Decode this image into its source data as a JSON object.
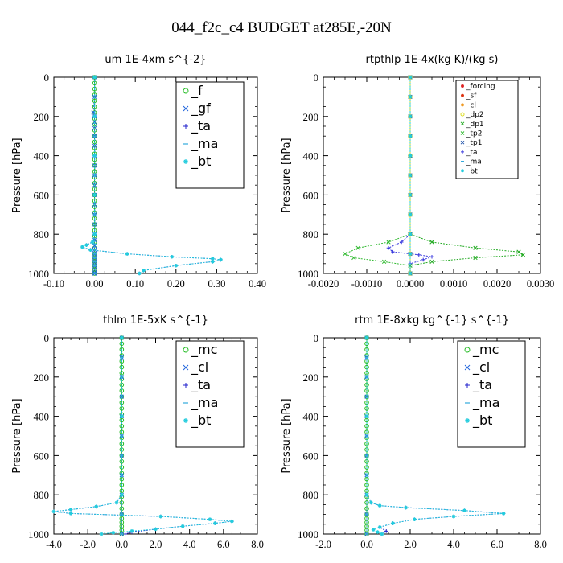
{
  "title": "044_f2c_c4  BUDGET at285E,-20N",
  "chart_data": [
    {
      "type": "line",
      "title": "um   1E-4xm s^{-2}",
      "ylabel": "Pressure [hPa]",
      "ylim": [
        1000,
        0
      ],
      "xlim": [
        -0.1,
        0.4
      ],
      "xticks": [
        "-0.10",
        "0.00",
        "0.10",
        "0.20",
        "0.30",
        "0.40"
      ],
      "yticks": [
        "0",
        "200",
        "400",
        "600",
        "800",
        "1000"
      ],
      "legend": "top-right",
      "series": [
        {
          "name": "_f",
          "color": "#22bb22",
          "marker": "o",
          "x": [
            0,
            0,
            0,
            0,
            0,
            0,
            0,
            0,
            0,
            0,
            0,
            0,
            0,
            0,
            0,
            0,
            0,
            0,
            0,
            0,
            0,
            0,
            0,
            0,
            0,
            0,
            0,
            0,
            0,
            0,
            0,
            0,
            0,
            0,
            0,
            0
          ],
          "y": [
            0,
            30,
            60,
            90,
            120,
            150,
            180,
            210,
            240,
            270,
            300,
            330,
            360,
            390,
            420,
            450,
            480,
            510,
            540,
            570,
            600,
            630,
            660,
            690,
            720,
            750,
            780,
            810,
            840,
            870,
            900,
            920,
            940,
            960,
            980,
            1000
          ]
        },
        {
          "name": "_gf",
          "color": "#2266dd",
          "marker": "x",
          "x": [
            0,
            0,
            -0.003,
            0,
            0,
            0,
            0,
            0,
            0,
            0,
            0,
            0,
            0,
            0,
            0,
            0,
            0,
            0,
            0,
            0,
            0,
            0,
            0,
            0,
            0,
            0,
            0,
            0,
            0,
            0,
            0,
            0,
            0
          ],
          "y": [
            0,
            100,
            180,
            200,
            230,
            260,
            300,
            350,
            400,
            450,
            500,
            550,
            600,
            650,
            700,
            750,
            800,
            830,
            860,
            880,
            900,
            920,
            940,
            960,
            980,
            1000,
            1000,
            1000,
            1000,
            1000,
            1000,
            1000,
            1000
          ]
        },
        {
          "name": "_ta",
          "color": "#2222cc",
          "marker": "+",
          "x": [
            0,
            0,
            0,
            0,
            -0.005,
            -0.02,
            -0.03,
            -0.01,
            0.08,
            0.19,
            0.29,
            0.31,
            0.29,
            0.2,
            0.12,
            0.11
          ],
          "y": [
            0,
            200,
            400,
            800,
            840,
            855,
            865,
            880,
            900,
            915,
            925,
            930,
            940,
            960,
            985,
            1000
          ]
        },
        {
          "name": "_ma",
          "color": "#33aadd",
          "marker": "-",
          "x": [
            0,
            0,
            0,
            0,
            0,
            0,
            0,
            0,
            0,
            0,
            0,
            0,
            0,
            0,
            0,
            0
          ],
          "y": [
            0,
            100,
            200,
            300,
            400,
            500,
            600,
            700,
            800,
            850,
            880,
            900,
            920,
            940,
            960,
            1000
          ]
        },
        {
          "name": "_bt",
          "color": "#22ccdd",
          "marker": "*",
          "x": [
            0,
            0,
            0,
            0,
            0,
            -0.005,
            -0.02,
            -0.03,
            -0.01,
            0.08,
            0.19,
            0.29,
            0.31,
            0.29,
            0.2,
            0.12,
            0.11
          ],
          "y": [
            0,
            200,
            400,
            600,
            800,
            840,
            855,
            865,
            880,
            900,
            915,
            925,
            930,
            940,
            960,
            985,
            1000
          ]
        }
      ]
    },
    {
      "type": "line",
      "title": "rtpthlp   1E-4x(kg K)/(kg s)",
      "ylabel": "Pressure [hPa]",
      "ylim": [
        1000,
        0
      ],
      "xlim": [
        -0.002,
        0.003
      ],
      "xticks": [
        "-0.0020",
        "-0.0010",
        "0.0000",
        "0.0010",
        "0.0020",
        "0.0030"
      ],
      "yticks": [
        "0",
        "200",
        "400",
        "600",
        "800",
        "1000"
      ],
      "legend": "top-right",
      "series": [
        {
          "name": "_forcing",
          "color": "#dd2222",
          "marker": "*",
          "x": [
            0,
            0,
            0,
            0,
            0,
            0,
            0,
            0,
            0,
            0,
            0
          ],
          "y": [
            0,
            100,
            200,
            300,
            400,
            500,
            600,
            700,
            800,
            900,
            1000
          ]
        },
        {
          "name": "_sf",
          "color": "#dd3311",
          "marker": "*",
          "x": [
            0,
            0,
            0,
            0,
            0,
            0,
            0,
            0,
            0,
            0,
            0
          ],
          "y": [
            0,
            100,
            200,
            300,
            400,
            500,
            600,
            700,
            800,
            900,
            1000
          ]
        },
        {
          "name": "_cl",
          "color": "#ee9922",
          "marker": "*",
          "x": [
            0,
            0,
            0,
            0,
            0,
            0,
            0,
            0,
            0,
            0,
            0
          ],
          "y": [
            0,
            100,
            200,
            300,
            400,
            500,
            600,
            700,
            800,
            900,
            1000
          ]
        },
        {
          "name": "_dp2",
          "color": "#dddd22",
          "marker": "o",
          "x": [
            0,
            0,
            0,
            0,
            0,
            0,
            0,
            0,
            0,
            0,
            0
          ],
          "y": [
            0,
            100,
            200,
            300,
            400,
            500,
            600,
            700,
            800,
            900,
            1000
          ]
        },
        {
          "name": "_dp1",
          "color": "#22aa22",
          "marker": "x",
          "x": [
            0,
            0,
            0,
            0.0005,
            0.0015,
            0.0025,
            0.0026,
            0.0015,
            0.0005,
            0,
            0
          ],
          "y": [
            0,
            400,
            800,
            840,
            870,
            890,
            905,
            920,
            940,
            960,
            1000
          ]
        },
        {
          "name": "_tp2",
          "color": "#33bb33",
          "marker": "x",
          "x": [
            0,
            0,
            0,
            -0.0005,
            -0.0012,
            -0.0015,
            -0.0013,
            -0.0006,
            0,
            0
          ],
          "y": [
            0,
            400,
            800,
            840,
            870,
            900,
            920,
            940,
            960,
            1000
          ]
        },
        {
          "name": "_tp1",
          "color": "#2255aa",
          "marker": "x",
          "x": [
            0,
            0,
            0,
            0,
            0,
            0,
            0,
            0,
            0,
            0,
            0
          ],
          "y": [
            0,
            100,
            200,
            300,
            400,
            500,
            600,
            700,
            800,
            900,
            1000
          ]
        },
        {
          "name": "_ta",
          "color": "#3333dd",
          "marker": "+",
          "x": [
            0,
            0,
            0,
            -0.0002,
            -0.0005,
            -0.0004,
            0.0002,
            0.0005,
            0.0003,
            0,
            0
          ],
          "y": [
            0,
            400,
            800,
            840,
            870,
            890,
            905,
            915,
            930,
            950,
            1000
          ]
        },
        {
          "name": "_ma",
          "color": "#33aadd",
          "marker": "-",
          "x": [
            0,
            0,
            0,
            0,
            0,
            0,
            0,
            0,
            0,
            0,
            0
          ],
          "y": [
            0,
            100,
            200,
            300,
            400,
            500,
            600,
            700,
            800,
            900,
            1000
          ]
        },
        {
          "name": "_bt",
          "color": "#22ccdd",
          "marker": "*",
          "x": [
            0,
            0,
            0,
            0,
            0,
            0,
            0,
            0,
            0,
            0,
            0
          ],
          "y": [
            0,
            100,
            200,
            300,
            400,
            500,
            600,
            700,
            800,
            900,
            1000
          ]
        }
      ]
    },
    {
      "type": "line",
      "title": "thlm   1E-5xK s^{-1}",
      "ylabel": "Pressure [hPa]",
      "ylim": [
        1000,
        0
      ],
      "xlim": [
        -4.0,
        8.0
      ],
      "xticks": [
        "-4.0",
        "-2.0",
        "0.0",
        "2.0",
        "4.0",
        "6.0",
        "8.0"
      ],
      "yticks": [
        "0",
        "200",
        "400",
        "600",
        "800",
        "1000"
      ],
      "legend": "top-right",
      "series": [
        {
          "name": "_mc",
          "color": "#22bb22",
          "marker": "o",
          "x": [
            0,
            0,
            0,
            0,
            0,
            0,
            0,
            0,
            0,
            0,
            0,
            0,
            0,
            0,
            0,
            0,
            0,
            0,
            0,
            0,
            0,
            0,
            0,
            0,
            0,
            0,
            0,
            0,
            0,
            0,
            0,
            0,
            0,
            0,
            0,
            0
          ],
          "y": [
            0,
            30,
            60,
            90,
            120,
            150,
            180,
            210,
            240,
            270,
            300,
            330,
            360,
            390,
            420,
            450,
            480,
            510,
            540,
            570,
            600,
            630,
            660,
            690,
            720,
            750,
            780,
            810,
            840,
            870,
            900,
            920,
            940,
            960,
            980,
            1000
          ]
        },
        {
          "name": "_cl",
          "color": "#2266dd",
          "marker": "x",
          "x": [
            0,
            0,
            0,
            0,
            0,
            0,
            0,
            0,
            0,
            0,
            0
          ],
          "y": [
            0,
            100,
            200,
            300,
            400,
            500,
            600,
            700,
            800,
            900,
            1000
          ]
        },
        {
          "name": "_ta",
          "color": "#2222cc",
          "marker": "+",
          "x": [
            0,
            0,
            0,
            -0.3,
            -1.5,
            -3.0,
            -4.0,
            -3.0,
            2.3,
            5.2,
            6.5,
            5.5,
            3.6,
            2.0,
            0.6,
            0.2
          ],
          "y": [
            0,
            400,
            800,
            840,
            860,
            875,
            885,
            895,
            910,
            925,
            935,
            945,
            960,
            975,
            990,
            1000
          ]
        },
        {
          "name": "_ma",
          "color": "#33aadd",
          "marker": "-",
          "x": [
            0,
            0,
            0,
            0,
            0,
            0,
            0,
            0,
            0,
            0,
            0
          ],
          "y": [
            0,
            100,
            200,
            300,
            400,
            500,
            600,
            700,
            800,
            900,
            1000
          ]
        },
        {
          "name": "_bt",
          "color": "#22ccdd",
          "marker": "*",
          "x": [
            0,
            0,
            0,
            -0.3,
            -1.5,
            -3.0,
            -4.0,
            -3.0,
            2.3,
            5.2,
            6.5,
            5.5,
            3.6,
            2.0,
            0.6,
            -0.5,
            -1.2
          ],
          "y": [
            0,
            400,
            800,
            840,
            860,
            875,
            885,
            895,
            910,
            925,
            935,
            945,
            960,
            975,
            985,
            993,
            1000
          ]
        }
      ]
    },
    {
      "type": "line",
      "title": "rtm   1E-8xkg kg^{-1} s^{-1}",
      "ylabel": "Pressure [hPa]",
      "ylim": [
        1000,
        0
      ],
      "xlim": [
        -2.0,
        8.0
      ],
      "xticks": [
        "-2.0",
        "0.0",
        "2.0",
        "4.0",
        "6.0",
        "8.0"
      ],
      "yticks": [
        "0",
        "200",
        "400",
        "600",
        "800",
        "1000"
      ],
      "legend": "top-right",
      "series": [
        {
          "name": "_mc",
          "color": "#22bb22",
          "marker": "o",
          "x": [
            0,
            0,
            0,
            0,
            0,
            0,
            0,
            0,
            0,
            0,
            0,
            0,
            0,
            0,
            0,
            0,
            0,
            0,
            0,
            0,
            0,
            0,
            0,
            0,
            0,
            0,
            0,
            0,
            0,
            0,
            0,
            0,
            0,
            0,
            0,
            0
          ],
          "y": [
            0,
            30,
            60,
            90,
            120,
            150,
            180,
            210,
            240,
            270,
            300,
            330,
            360,
            390,
            420,
            450,
            480,
            510,
            540,
            570,
            600,
            630,
            660,
            690,
            720,
            750,
            780,
            810,
            840,
            870,
            900,
            920,
            940,
            960,
            980,
            1000
          ]
        },
        {
          "name": "_cl",
          "color": "#2266dd",
          "marker": "x",
          "x": [
            0,
            0,
            0,
            0,
            0,
            0,
            0,
            0,
            0,
            0,
            0
          ],
          "y": [
            0,
            100,
            200,
            300,
            400,
            500,
            600,
            700,
            800,
            900,
            1000
          ]
        },
        {
          "name": "_ta",
          "color": "#2222cc",
          "marker": "+",
          "x": [
            0,
            0,
            0,
            0.2,
            0.6,
            1.8,
            4.5,
            6.3,
            4.0,
            2.2,
            1.2,
            0.6,
            0.9,
            0.7
          ],
          "y": [
            0,
            400,
            800,
            840,
            855,
            865,
            880,
            895,
            910,
            925,
            945,
            965,
            985,
            1000
          ]
        },
        {
          "name": "_ma",
          "color": "#33aadd",
          "marker": "-",
          "x": [
            0,
            0,
            0,
            0,
            0,
            0,
            0,
            0,
            0,
            0,
            0
          ],
          "y": [
            0,
            100,
            200,
            300,
            400,
            500,
            600,
            700,
            800,
            900,
            1000
          ]
        },
        {
          "name": "_bt",
          "color": "#22ccdd",
          "marker": "*",
          "x": [
            0,
            0,
            0,
            0.2,
            0.6,
            1.8,
            4.5,
            6.3,
            4.0,
            2.2,
            1.2,
            0.6,
            0.3,
            0.5,
            0.7
          ],
          "y": [
            0,
            400,
            800,
            840,
            855,
            865,
            880,
            895,
            910,
            925,
            945,
            965,
            978,
            990,
            1000
          ]
        }
      ]
    }
  ]
}
